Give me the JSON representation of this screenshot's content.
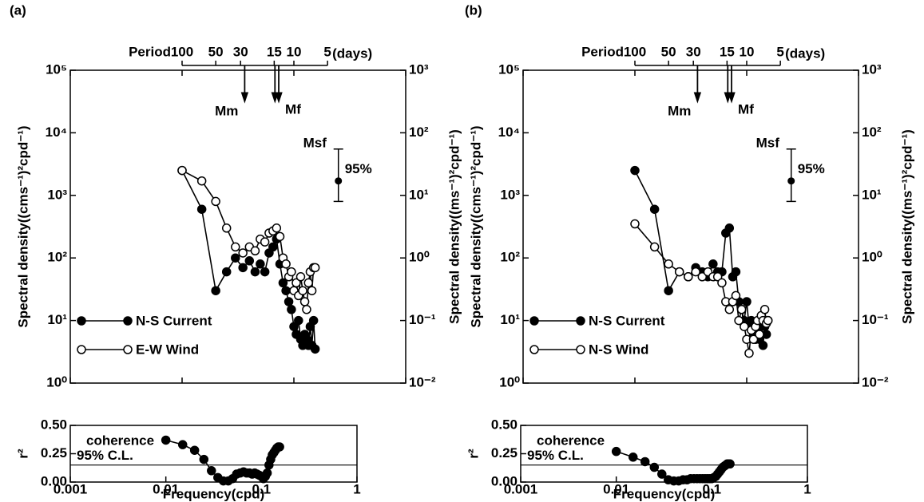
{
  "chart_data": [
    {
      "type": "line",
      "panel_label": "(a)",
      "xlog": true,
      "ylog": true,
      "x": [
        0.01,
        0.015,
        0.02,
        0.025,
        0.03,
        0.035,
        0.04,
        0.045,
        0.05,
        0.055,
        0.06,
        0.065,
        0.07,
        0.075,
        0.08,
        0.085,
        0.09,
        0.095,
        0.1,
        0.105,
        0.11,
        0.115,
        0.12,
        0.125,
        0.13,
        0.135,
        0.14,
        0.145,
        0.15,
        0.155
      ],
      "xlim": [
        0.001,
        1
      ],
      "xticks": [
        0.001,
        0.01,
        0.1,
        1
      ],
      "ylim": [
        1,
        100000
      ],
      "yticks": [
        {
          "value": 1,
          "label": "10⁰"
        },
        {
          "value": 10,
          "label": "10¹"
        },
        {
          "value": 100,
          "label": "10²"
        },
        {
          "value": 1000,
          "label": "10³"
        },
        {
          "value": 10000,
          "label": "10⁴"
        },
        {
          "value": 100000,
          "label": "10⁵"
        }
      ],
      "y2lim": [
        0.01,
        1000
      ],
      "y2ticks": [
        {
          "value": 0.01,
          "label": "10⁻²"
        },
        {
          "value": 0.1,
          "label": "10⁻¹"
        },
        {
          "value": 1,
          "label": "10⁰"
        },
        {
          "value": 10,
          "label": "10¹"
        },
        {
          "value": 100,
          "label": "10²"
        },
        {
          "value": 1000,
          "label": "10³"
        }
      ],
      "ylabel": "Spectral density((cms⁻¹)²cpd⁻¹)",
      "y2label": "Spectral density((ms⁻¹)²cpd⁻¹)",
      "top_axis": {
        "title": "Period",
        "unit": "(days)",
        "ticks": [
          100,
          50,
          30,
          15,
          10,
          5
        ]
      },
      "annotations": [
        {
          "label": "Mm",
          "x": 0.0363
        },
        {
          "label": "Msf",
          "x": 0.0677
        },
        {
          "label": "Mf",
          "x": 0.0732
        }
      ],
      "errorbar": {
        "label": "95%",
        "x": 0.25,
        "value": 1700,
        "low": 800,
        "high": 5500
      },
      "legend": "lower left",
      "series": [
        {
          "name": "N-S Current",
          "color": "#000000",
          "marker": "filled",
          "values": [
            2500,
            600,
            30,
            60,
            100,
            70,
            90,
            60,
            80,
            60,
            120,
            150,
            200,
            80,
            40,
            30,
            20,
            15,
            8,
            6,
            10,
            5,
            4,
            6,
            5,
            4,
            8,
            4,
            10,
            3.5
          ]
        },
        {
          "name": "E-W Wind",
          "color": "#000000",
          "marker": "open",
          "axis": "y2",
          "values": [
            25,
            17,
            8,
            3,
            1.5,
            1.2,
            1.5,
            1.3,
            2,
            1.8,
            2.5,
            2.7,
            3,
            2.2,
            1,
            0.8,
            0.5,
            0.6,
            0.3,
            0.4,
            0.25,
            0.5,
            0.3,
            0.2,
            0.15,
            0.4,
            0.6,
            0.3,
            0.7,
            0.7
          ]
        }
      ]
    },
    {
      "type": "line",
      "xlog": true,
      "x": [
        0.01,
        0.015,
        0.02,
        0.025,
        0.03,
        0.035,
        0.04,
        0.045,
        0.05,
        0.055,
        0.06,
        0.065,
        0.07,
        0.075,
        0.08,
        0.085,
        0.09,
        0.095,
        0.1,
        0.105,
        0.11,
        0.115,
        0.12,
        0.125,
        0.13,
        0.135,
        0.14,
        0.145,
        0.15,
        0.155
      ],
      "xlim": [
        0.001,
        1
      ],
      "xticks": [
        0.001,
        0.01,
        0.1,
        1
      ],
      "xlabel": "Frequency(cpd)",
      "ylim": [
        0,
        0.5
      ],
      "yticks": [
        {
          "value": 0,
          "label": "0.00"
        },
        {
          "value": 0.25,
          "label": "0.25"
        },
        {
          "value": 0.5,
          "label": "0.50"
        }
      ],
      "ylabel": "r²",
      "text": "coherence",
      "reference_line": {
        "value": 0.15,
        "label": "95% C.L."
      },
      "series": [
        {
          "color": "#000000",
          "marker": "filled",
          "values": [
            0.37,
            0.33,
            0.28,
            0.2,
            0.1,
            0.04,
            0.01,
            0.01,
            0.03,
            0.07,
            0.08,
            0.09,
            0.08,
            0.08,
            0.07,
            0.08,
            0.07,
            0.06,
            0.05,
            0.03,
            0.05,
            0.08,
            0.15,
            0.2,
            0.24,
            0.26,
            0.28,
            0.3,
            0.31,
            0.31
          ]
        }
      ]
    },
    {
      "type": "line",
      "panel_label": "(b)",
      "xlog": true,
      "ylog": true,
      "x": [
        0.01,
        0.015,
        0.02,
        0.025,
        0.03,
        0.035,
        0.04,
        0.045,
        0.05,
        0.055,
        0.06,
        0.065,
        0.07,
        0.075,
        0.08,
        0.085,
        0.09,
        0.095,
        0.1,
        0.105,
        0.11,
        0.115,
        0.12,
        0.125,
        0.13,
        0.135,
        0.14,
        0.145,
        0.15,
        0.155
      ],
      "xlim": [
        0.001,
        1
      ],
      "xticks": [
        0.001,
        0.01,
        0.1,
        1
      ],
      "ylim": [
        1,
        100000
      ],
      "yticks": [
        {
          "value": 1,
          "label": "10⁰"
        },
        {
          "value": 10,
          "label": "10¹"
        },
        {
          "value": 100,
          "label": "10²"
        },
        {
          "value": 1000,
          "label": "10³"
        },
        {
          "value": 10000,
          "label": "10⁴"
        },
        {
          "value": 100000,
          "label": "10⁵"
        }
      ],
      "y2lim": [
        0.01,
        1000
      ],
      "y2ticks": [
        {
          "value": 0.01,
          "label": "10⁻²"
        },
        {
          "value": 0.1,
          "label": "10⁻¹"
        },
        {
          "value": 1,
          "label": "10⁰"
        },
        {
          "value": 10,
          "label": "10¹"
        },
        {
          "value": 100,
          "label": "10²"
        },
        {
          "value": 1000,
          "label": "10³"
        }
      ],
      "ylabel": "Spectral density((cms⁻¹)²cpd⁻¹)",
      "y2label": "Spectral density((ms⁻¹)²cpd⁻¹)",
      "top_axis": {
        "title": "Period",
        "unit": "(days)",
        "ticks": [
          100,
          50,
          30,
          15,
          10,
          5
        ]
      },
      "annotations": [
        {
          "label": "Mm",
          "x": 0.0363
        },
        {
          "label": "Msf",
          "x": 0.0677
        },
        {
          "label": "Mf",
          "x": 0.0732
        }
      ],
      "errorbar": {
        "label": "95%",
        "x": 0.25,
        "value": 1700,
        "low": 800,
        "high": 5500
      },
      "legend": "lower left",
      "series": [
        {
          "name": "N-S Current",
          "color": "#000000",
          "marker": "filled",
          "values": [
            2500,
            600,
            30,
            60,
            50,
            70,
            60,
            50,
            80,
            60,
            60,
            250,
            300,
            50,
            60,
            20,
            15,
            10,
            20,
            8,
            10,
            6,
            5,
            7,
            5,
            10,
            4,
            8,
            6,
            10
          ]
        },
        {
          "name": "N-S Wind",
          "color": "#000000",
          "marker": "open",
          "axis": "y2",
          "values": [
            3.5,
            1.5,
            0.8,
            0.6,
            0.5,
            0.6,
            0.5,
            0.6,
            0.5,
            0.5,
            0.4,
            0.2,
            0.15,
            0.2,
            0.25,
            0.1,
            0.15,
            0.08,
            0.05,
            0.03,
            0.07,
            0.05,
            0.08,
            0.1,
            0.06,
            0.12,
            0.1,
            0.15,
            0.09,
            0.1
          ]
        }
      ]
    },
    {
      "type": "line",
      "xlog": true,
      "x": [
        0.01,
        0.015,
        0.02,
        0.025,
        0.03,
        0.035,
        0.04,
        0.045,
        0.05,
        0.055,
        0.06,
        0.065,
        0.07,
        0.075,
        0.08,
        0.085,
        0.09,
        0.095,
        0.1,
        0.105,
        0.11,
        0.115,
        0.12,
        0.125,
        0.13,
        0.135,
        0.14,
        0.145,
        0.15,
        0.155
      ],
      "xlim": [
        0.001,
        1
      ],
      "xticks": [
        0.001,
        0.01,
        0.1,
        1
      ],
      "xlabel": "Frequency(cpd)",
      "ylim": [
        0,
        0.5
      ],
      "yticks": [
        {
          "value": 0,
          "label": "0.00"
        },
        {
          "value": 0.25,
          "label": "0.25"
        },
        {
          "value": 0.5,
          "label": "0.50"
        }
      ],
      "ylabel": "r²",
      "text": "coherence",
      "reference_line": {
        "value": 0.15,
        "label": "95% C.L."
      },
      "series": [
        {
          "color": "#000000",
          "marker": "filled",
          "values": [
            0.27,
            0.22,
            0.18,
            0.13,
            0.07,
            0.02,
            0.01,
            0.01,
            0.02,
            0.02,
            0.03,
            0.03,
            0.03,
            0.03,
            0.03,
            0.03,
            0.03,
            0.03,
            0.03,
            0.04,
            0.05,
            0.07,
            0.09,
            0.11,
            0.13,
            0.14,
            0.15,
            0.16,
            0.16,
            0.16
          ]
        }
      ]
    }
  ]
}
